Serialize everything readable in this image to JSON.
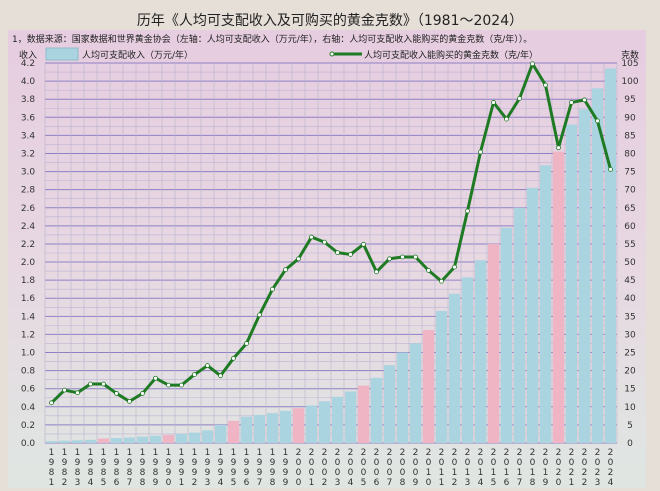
{
  "chart_data": {
    "type": "bar+line",
    "title": "历年《人均可支配收入及可购买的黄金克数》（1981～2024）",
    "note": "1，数据来源：国家数据和世界黄金协会（左轴：人均可支配收入（万元/年），右轴：人均可支配收入能购买的黄金克数（克/年））。",
    "ylabel_left": "收入",
    "ylabel_right": "克数",
    "ylim_left": [
      0,
      4.2
    ],
    "ylim_right": [
      0,
      105
    ],
    "yticks_left": [
      "0.0",
      "0.2",
      "0.4",
      "0.6",
      "0.8",
      "1.0",
      "1.2",
      "1.4",
      "1.6",
      "1.8",
      "2.0",
      "2.2",
      "2.4",
      "2.6",
      "2.8",
      "3.0",
      "3.2",
      "3.4",
      "3.6",
      "3.8",
      "4.0",
      "4.2"
    ],
    "yticks_right": [
      "0",
      "5",
      "10",
      "15",
      "20",
      "25",
      "30",
      "35",
      "40",
      "45",
      "50",
      "55",
      "60",
      "65",
      "70",
      "75",
      "80",
      "85",
      "90",
      "95",
      "100",
      "105"
    ],
    "categories": [
      "1981",
      "1982",
      "1983",
      "1984",
      "1985",
      "1986",
      "1987",
      "1988",
      "1989",
      "1990",
      "1991",
      "1992",
      "1993",
      "1994",
      "1995",
      "1996",
      "1997",
      "1998",
      "1999",
      "2000",
      "2001",
      "2002",
      "2003",
      "2004",
      "2005",
      "2006",
      "2007",
      "2008",
      "2009",
      "2010",
      "2011",
      "2012",
      "2013",
      "2014",
      "2015",
      "2016",
      "2017",
      "2018",
      "2019",
      "2020",
      "2021",
      "2022",
      "2023",
      "2024"
    ],
    "series": [
      {
        "name": "人均可支配收入（万元/年）",
        "type": "bar",
        "axis": "left",
        "color": "#a9d4e0",
        "highlight_color": "#f0b5c5",
        "values": [
          0.02,
          0.025,
          0.03,
          0.035,
          0.05,
          0.055,
          0.06,
          0.07,
          0.08,
          0.09,
          0.1,
          0.115,
          0.14,
          0.2,
          0.245,
          0.29,
          0.31,
          0.33,
          0.355,
          0.385,
          0.415,
          0.46,
          0.51,
          0.57,
          0.635,
          0.72,
          0.86,
          1.0,
          1.1,
          1.25,
          1.46,
          1.65,
          1.83,
          2.02,
          2.2,
          2.38,
          2.6,
          2.82,
          3.07,
          3.22,
          3.52,
          3.69,
          3.92,
          4.14
        ],
        "highlighted": [
          "1985",
          "1990",
          "1995",
          "2000",
          "2005",
          "2010",
          "2015",
          "2020"
        ]
      },
      {
        "name": "人均可支配收入能购买的黄金克数（克/年）",
        "type": "line",
        "axis": "right",
        "color": "#1f7a24",
        "values": [
          11.1,
          14.6,
          13.9,
          16.3,
          16.3,
          13.7,
          11.5,
          13.7,
          17.9,
          16.0,
          16.0,
          18.9,
          21.4,
          18.6,
          23.4,
          27.5,
          35.4,
          42.5,
          47.9,
          50.9,
          56.9,
          55.5,
          52.6,
          52.1,
          54.9,
          47.3,
          50.9,
          51.4,
          51.4,
          47.7,
          44.7,
          48.6,
          64.1,
          80.4,
          94.1,
          89.5,
          95.2,
          104.8,
          98.9,
          81.6,
          94.1,
          94.8,
          89.0,
          75.6
        ]
      }
    ]
  }
}
